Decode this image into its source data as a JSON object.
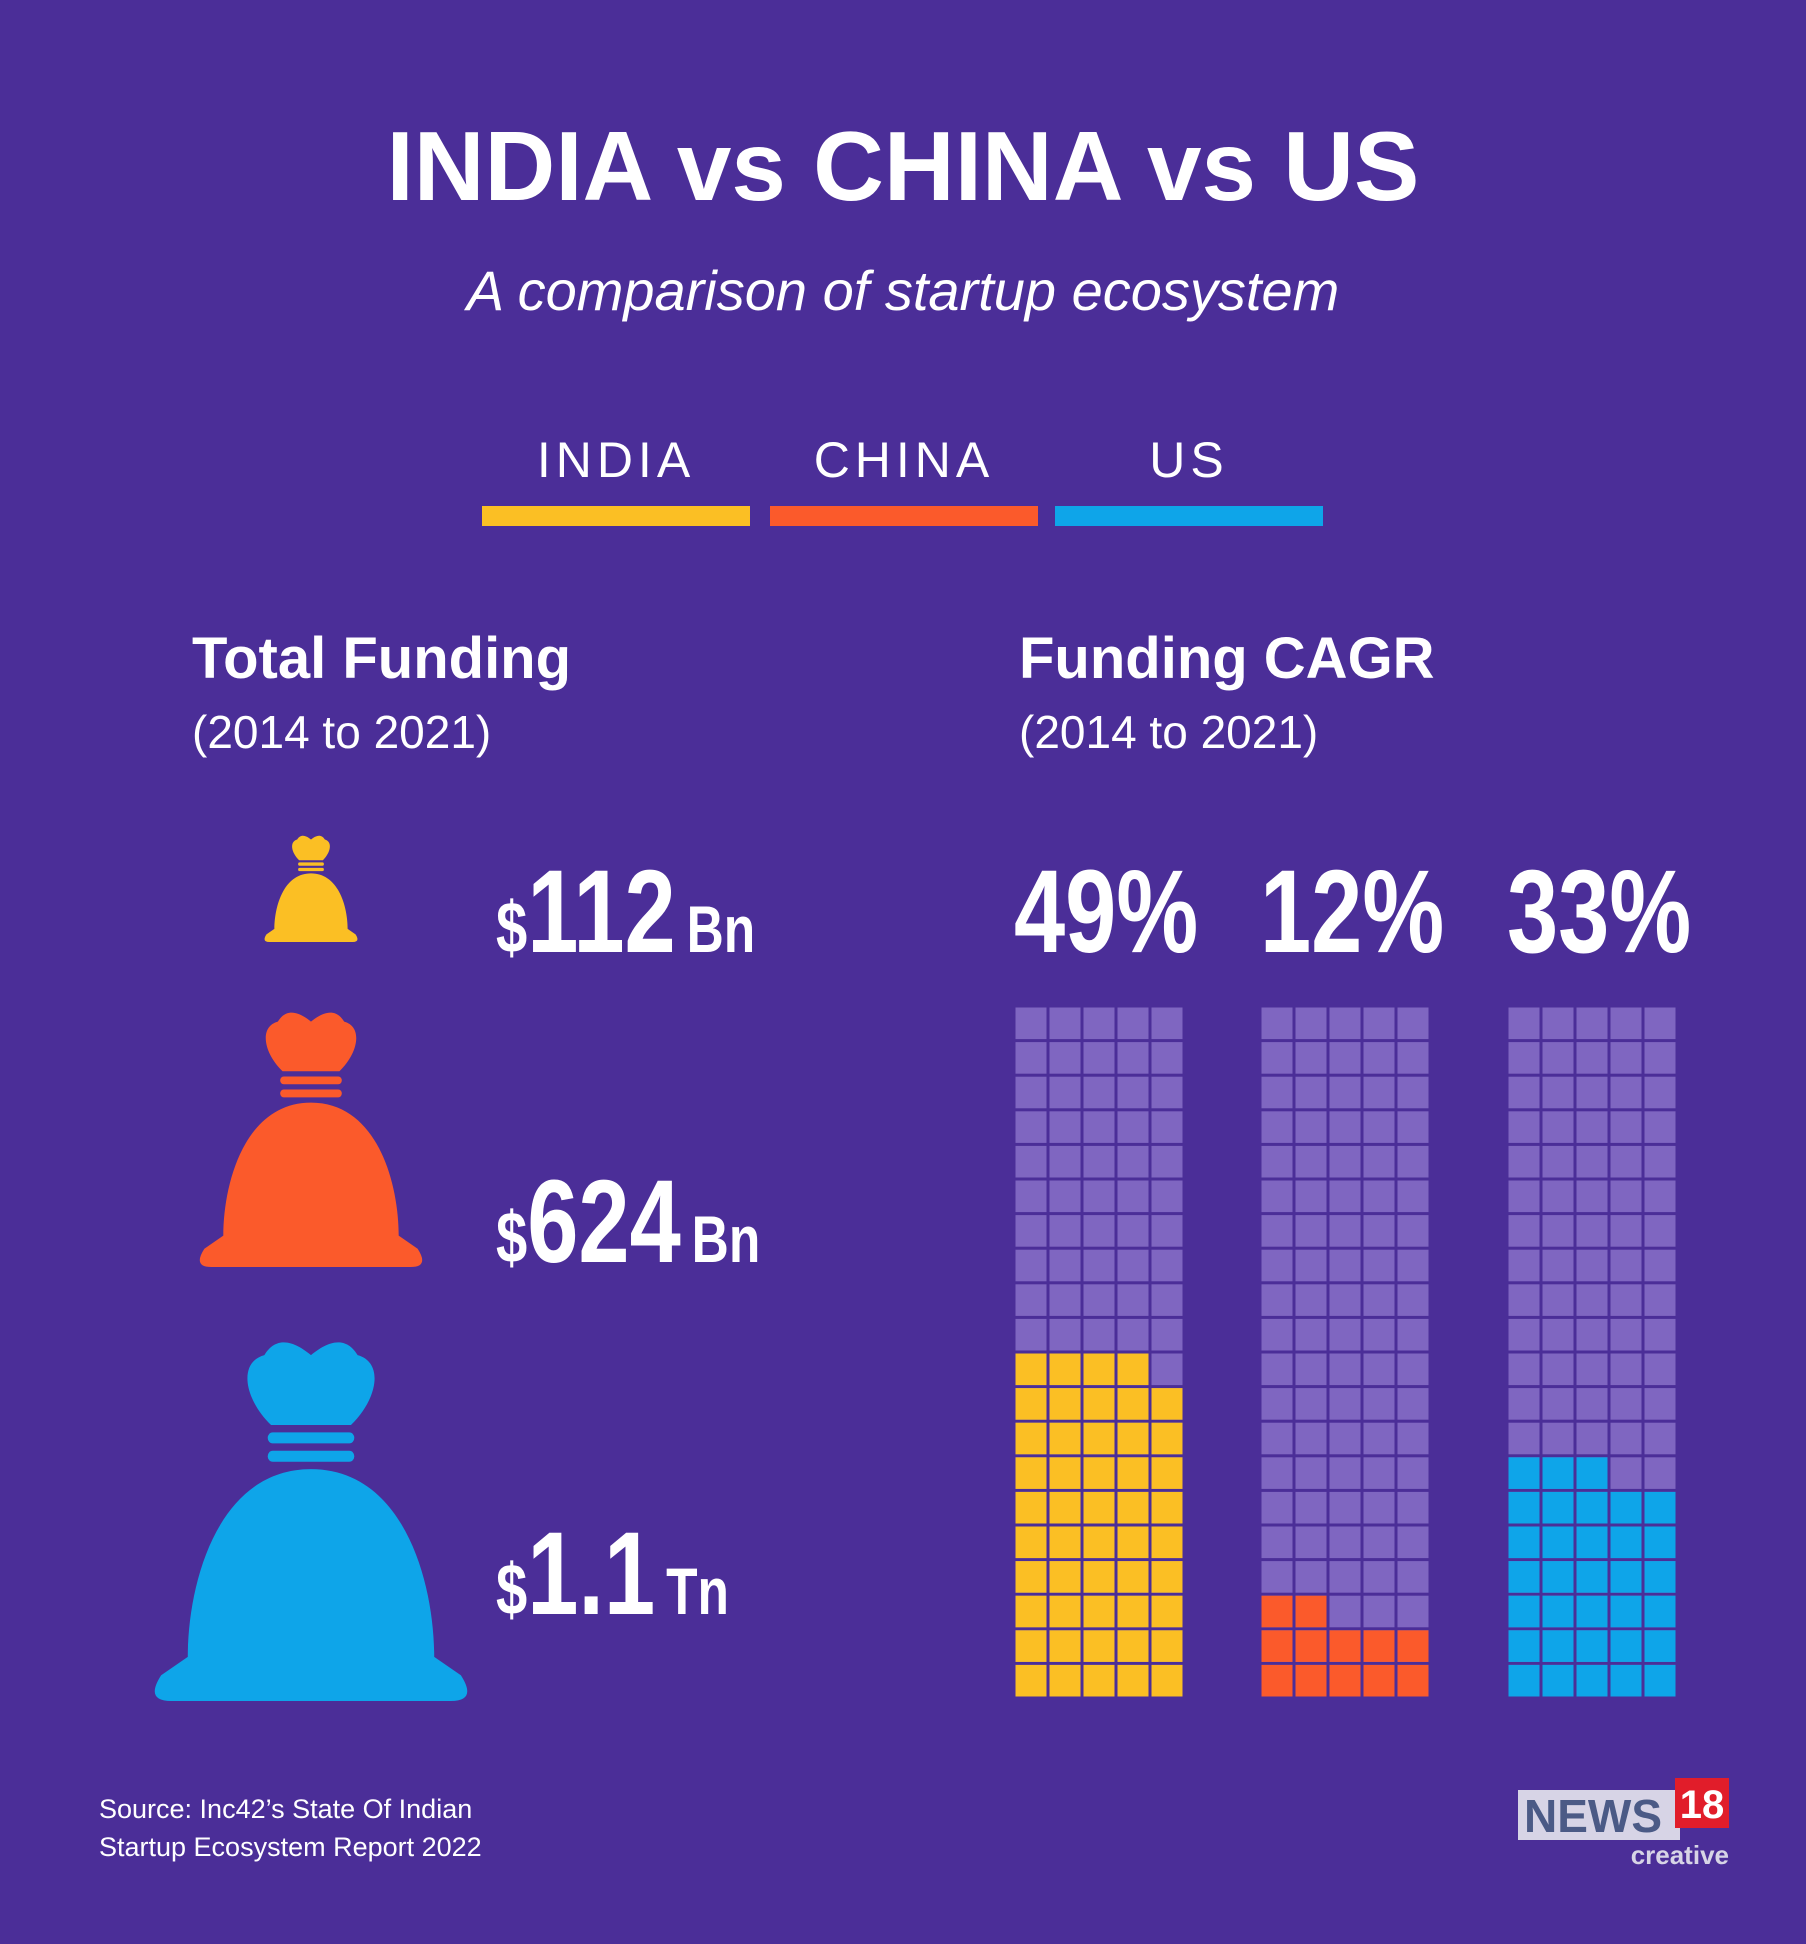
{
  "title": "INDIA vs CHINA vs US",
  "subtitle": "A comparison of startup ecosystem",
  "total_funding": {
    "title": "Total Funding",
    "period": "(2014 to 2021)",
    "items": [
      {
        "currency": "$",
        "amount": 112,
        "unit": "Bn"
      },
      {
        "currency": "$",
        "amount": 624,
        "unit": "Bn"
      },
      {
        "currency": "$",
        "amount": 1.1,
        "unit": "Tn"
      }
    ]
  },
  "chart_data": {
    "type": "waffle",
    "title": "Funding CAGR",
    "subtitle": "(2014 to 2021)",
    "categories": [
      "INDIA",
      "CHINA",
      "US"
    ],
    "colors": [
      "#fbbf24",
      "#fb5a2b",
      "#0ea5e9"
    ],
    "values": [
      49,
      12,
      33
    ],
    "value_labels": [
      "49%",
      "12%",
      "33%"
    ]
  },
  "source": [
    "Source: Inc42’s State Of Indian",
    "Startup Ecosystem Report 2022"
  ],
  "logo": {
    "word": "NEWS",
    "number": "18",
    "tag": "creative"
  }
}
